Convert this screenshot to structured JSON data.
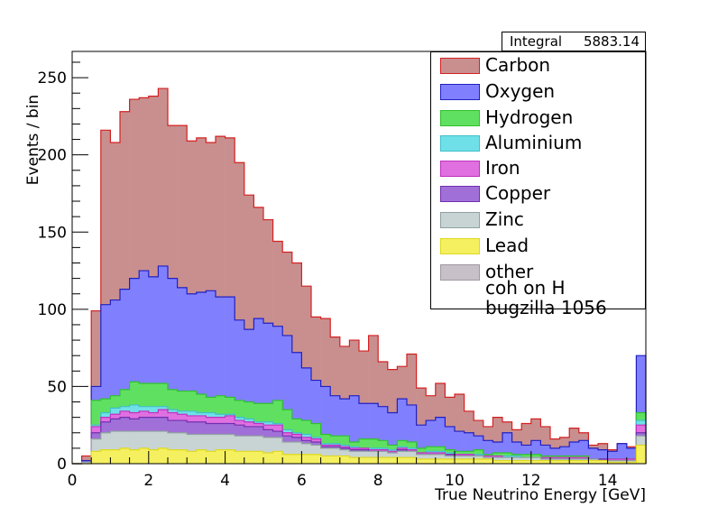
{
  "stat_box": {
    "label": "Integral",
    "value": "5883.14"
  },
  "legend": [
    {
      "label": "Carbon",
      "fill": "#c98f8f",
      "line": "#d42020"
    },
    {
      "label": "Oxygen",
      "fill": "#8080ff",
      "line": "#2020c0"
    },
    {
      "label": "Hydrogen",
      "fill": "#60e060",
      "line": "#30c030"
    },
    {
      "label": "Aluminium",
      "fill": "#70e0e8",
      "line": "#40c0c8"
    },
    {
      "label": "Iron",
      "fill": "#e070e0",
      "line": "#c030c0"
    },
    {
      "label": "Copper",
      "fill": "#a070d8",
      "line": "#7030b0"
    },
    {
      "label": "Zinc",
      "fill": "#c8d4d4",
      "line": "#90a0a0"
    },
    {
      "label": "Lead",
      "fill": "#f4f060",
      "line": "#e0d820"
    },
    {
      "label": "other",
      "fill": "#c8c0c8",
      "line": "#a098a0"
    },
    {
      "label": "coh on H",
      "fill": "#d8d0d8",
      "line": "#b0a8b0"
    },
    {
      "label": "bugzilla 1056",
      "fill": "#dcdcdc",
      "line": "#b0b0b0"
    }
  ],
  "chart_data": {
    "type": "area",
    "xlabel": "True Neutrino Energy [GeV]",
    "ylabel": "Events / bin",
    "xlim": [
      0,
      15
    ],
    "ylim": [
      0,
      267
    ],
    "xticks": [
      0,
      2,
      4,
      6,
      8,
      10,
      12,
      14
    ],
    "yticks": [
      0,
      50,
      100,
      150,
      200,
      250
    ],
    "bin_edges_start": 0,
    "bin_width": 0.25,
    "series": [
      {
        "name": "Carbon",
        "values": [
          0,
          5,
          99,
          216,
          208,
          228,
          236,
          237,
          238,
          243,
          219,
          219,
          209,
          211,
          208,
          212,
          211,
          195,
          174,
          166,
          158,
          144,
          137,
          130,
          115,
          95,
          94,
          82,
          76,
          80,
          73,
          83,
          66,
          61,
          63,
          71,
          49,
          44,
          52,
          43,
          45,
          34,
          28,
          24,
          30,
          27,
          22,
          26,
          29,
          24,
          16,
          17,
          23,
          20,
          12,
          13,
          9,
          13,
          11,
          2
        ]
      },
      {
        "name": "Oxygen",
        "values": [
          0,
          2,
          50,
          103,
          106,
          113,
          120,
          125,
          121,
          128,
          120,
          114,
          110,
          111,
          112,
          108,
          108,
          93,
          87,
          94,
          91,
          89,
          83,
          72,
          62,
          54,
          50,
          44,
          42,
          44,
          39,
          39,
          37,
          33,
          42,
          38,
          25,
          28,
          30,
          24,
          21,
          20,
          18,
          15,
          14,
          20,
          14,
          12,
          15,
          12,
          10,
          11,
          14,
          15,
          10,
          9,
          8,
          13,
          10,
          70
        ]
      },
      {
        "name": "Hydrogen",
        "values": [
          0,
          1,
          41,
          42,
          44,
          48,
          53,
          52,
          52,
          52,
          48,
          47,
          47,
          45,
          43,
          44,
          43,
          41,
          40,
          39,
          39,
          41,
          35,
          29,
          28,
          26,
          19,
          18,
          18,
          14,
          16,
          16,
          15,
          12,
          15,
          14,
          10,
          11,
          11,
          9,
          8,
          8,
          9,
          6,
          7,
          7,
          6,
          6,
          6,
          5,
          5,
          5,
          5,
          5,
          3,
          3,
          3,
          3,
          3,
          33
        ]
      },
      {
        "name": "Aluminium",
        "values": [
          0,
          1,
          25,
          33,
          36,
          37,
          38,
          37,
          37,
          37,
          35,
          34,
          34,
          33,
          33,
          32,
          32,
          30,
          29,
          27,
          27,
          26,
          22,
          20,
          19,
          17,
          13,
          13,
          12,
          11,
          10,
          10,
          10,
          9,
          11,
          10,
          7,
          8,
          8,
          7,
          6,
          6,
          6,
          5,
          5,
          5,
          5,
          4,
          4,
          4,
          4,
          4,
          4,
          4,
          3,
          3,
          3,
          3,
          3,
          28
        ]
      },
      {
        "name": "Iron",
        "values": [
          0,
          1,
          24,
          30,
          32,
          34,
          33,
          34,
          33,
          35,
          33,
          32,
          31,
          31,
          30,
          30,
          31,
          28,
          27,
          26,
          25,
          25,
          20,
          19,
          17,
          16,
          12,
          12,
          11,
          10,
          10,
          9,
          9,
          8,
          10,
          9,
          7,
          7,
          7,
          6,
          6,
          6,
          5,
          5,
          5,
          4,
          4,
          4,
          4,
          4,
          4,
          4,
          4,
          4,
          3,
          3,
          3,
          3,
          3,
          25
        ]
      },
      {
        "name": "Copper",
        "values": [
          0,
          1,
          20,
          27,
          29,
          30,
          29,
          30,
          30,
          30,
          28,
          28,
          27,
          27,
          26,
          26,
          26,
          25,
          24,
          24,
          22,
          21,
          18,
          17,
          15,
          14,
          11,
          11,
          10,
          9,
          9,
          8,
          8,
          7,
          9,
          8,
          6,
          6,
          6,
          6,
          5,
          5,
          5,
          4,
          4,
          4,
          4,
          4,
          4,
          3,
          3,
          3,
          3,
          3,
          3,
          3,
          2,
          2,
          2,
          20
        ]
      },
      {
        "name": "Zinc",
        "values": [
          0,
          1,
          16,
          20,
          21,
          21,
          21,
          21,
          21,
          21,
          20,
          20,
          19,
          19,
          19,
          19,
          19,
          18,
          18,
          18,
          17,
          17,
          14,
          14,
          13,
          12,
          10,
          10,
          9,
          8,
          8,
          8,
          8,
          7,
          8,
          8,
          6,
          6,
          6,
          5,
          5,
          5,
          5,
          4,
          4,
          4,
          4,
          4,
          4,
          3,
          3,
          3,
          3,
          3,
          3,
          2,
          2,
          2,
          2,
          18
        ]
      },
      {
        "name": "Lead",
        "values": [
          0,
          0,
          8,
          9,
          9,
          10,
          9,
          10,
          9,
          10,
          9,
          9,
          8,
          9,
          8,
          9,
          9,
          8,
          8,
          8,
          7,
          8,
          6,
          6,
          6,
          6,
          5,
          5,
          5,
          4,
          4,
          4,
          4,
          4,
          4,
          4,
          3,
          3,
          3,
          3,
          3,
          3,
          3,
          3,
          2,
          2,
          2,
          2,
          2,
          2,
          2,
          2,
          2,
          2,
          2,
          2,
          1,
          1,
          1,
          12
        ]
      }
    ]
  }
}
